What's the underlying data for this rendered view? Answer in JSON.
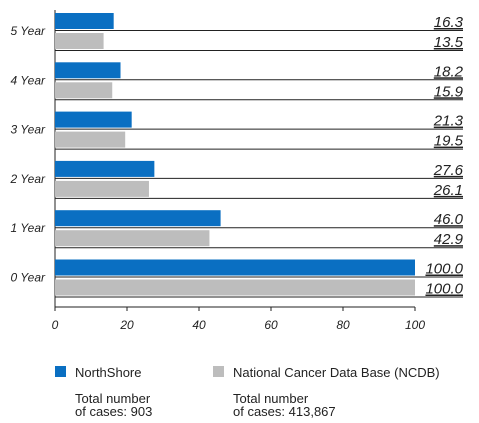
{
  "chart_data": {
    "type": "bar",
    "orientation": "horizontal",
    "categories": [
      "5 Year",
      "4 Year",
      "3 Year",
      "2 Year",
      "1 Year",
      "0 Year"
    ],
    "series": [
      {
        "name": "NorthShore",
        "color": "#0a6fc2",
        "values": [
          16.3,
          18.2,
          21.3,
          27.6,
          46.0,
          100.0
        ],
        "value_labels": [
          "16.3",
          "18.2",
          "21.3",
          "27.6",
          "46.0",
          "100.0"
        ]
      },
      {
        "name": "National Cancer Data Base (NCDB)",
        "color": "#bdbdbd",
        "values": [
          13.5,
          15.9,
          19.5,
          26.1,
          42.9,
          100.0
        ],
        "value_labels": [
          "13.5",
          "15.9",
          "19.5",
          "26.1",
          "42.9",
          "100.0"
        ]
      }
    ],
    "xlim": [
      0,
      100
    ],
    "xticks": [
      0,
      20,
      40,
      60,
      80,
      100
    ],
    "notes": [
      [
        "Total number",
        "of cases: 903"
      ],
      [
        "Total number",
        "of cases: 413,867"
      ]
    ]
  }
}
